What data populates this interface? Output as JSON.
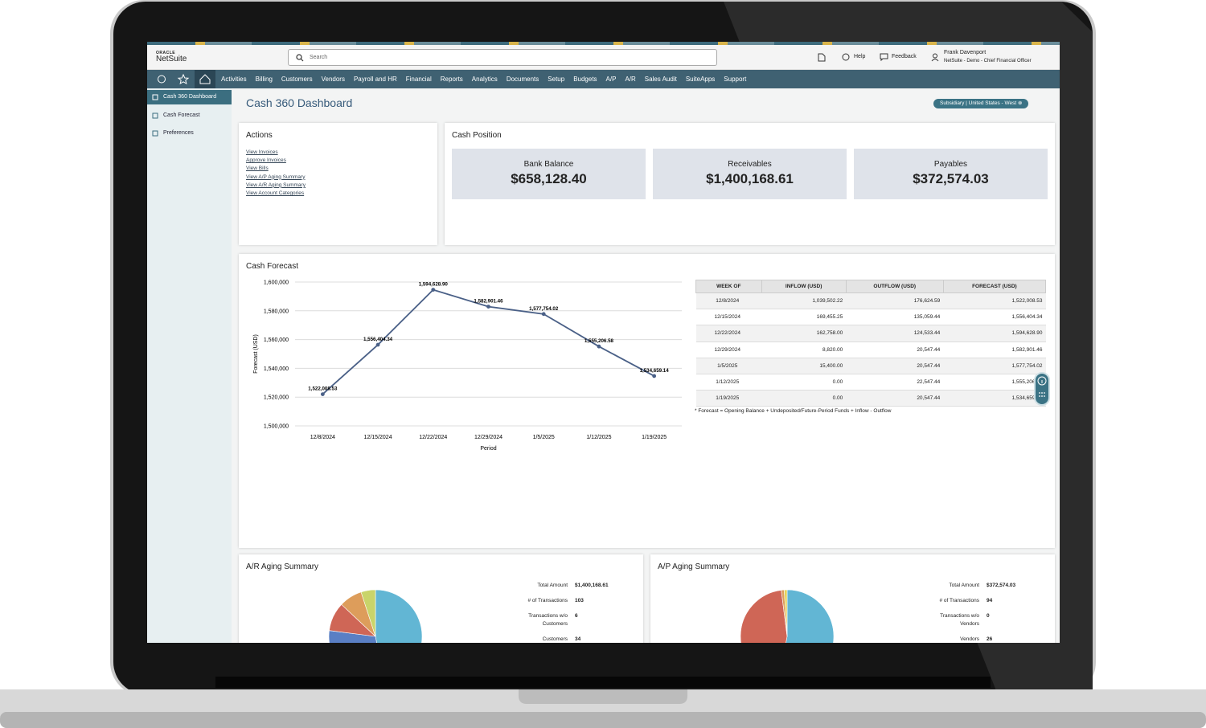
{
  "header": {
    "logo_top": "ORACLE",
    "logo_bottom": "NetSuite",
    "search": "Search",
    "help": "Help",
    "feedback": "Feedback",
    "user_name": "Frank Davenport",
    "user_role": "NetSuite - Demo - Chief Financial Officer"
  },
  "nav": [
    "Activities",
    "Billing",
    "Customers",
    "Vendors",
    "Payroll and HR",
    "Financial",
    "Reports",
    "Analytics",
    "Documents",
    "Setup",
    "Budgets",
    "A/P",
    "A/R",
    "Sales Audit",
    "SuiteApps",
    "Support"
  ],
  "sidebar": [
    "Cash 360 Dashboard",
    "Cash Forecast",
    "Preferences"
  ],
  "page_title": "Cash 360 Dashboard",
  "subsidiary": {
    "label": "Subsidiary",
    "value": "United States - West"
  },
  "actions": {
    "title": "Actions",
    "links": [
      "View Invoices",
      "Approve Invoices",
      "View Bills",
      "View A/P Aging Summary",
      "View A/R Aging Summary",
      "View Account Categories"
    ]
  },
  "cash_position": {
    "title": "Cash Position",
    "cards": [
      {
        "label": "Bank Balance",
        "value": "$658,128.40"
      },
      {
        "label": "Receivables",
        "value": "$1,400,168.61"
      },
      {
        "label": "Payables",
        "value": "$372,574.03"
      }
    ]
  },
  "chart_data": [
    {
      "type": "line",
      "title": "Cash Forecast",
      "x_label": "Period",
      "y_label": "Forecast (USD)",
      "categories": [
        "12/8/2024",
        "12/15/2024",
        "12/22/2024",
        "12/29/2024",
        "1/5/2025",
        "1/12/2025",
        "1/19/2025"
      ],
      "values": [
        1522008.53,
        1556404.34,
        1594628.9,
        1582901.46,
        1577754.02,
        1555206.58,
        1534659.14
      ],
      "value_labels": [
        "1,522,008.53",
        "1,556,404.34",
        "1,594,628.90",
        "1,582,901.46",
        "1,577,754.02",
        "1,555,206.58",
        "1,534,659.14"
      ],
      "color": "#4a6087",
      "ylim": [
        1500000,
        1600000
      ],
      "yticks": [
        {
          "value": 1500000,
          "label": "1,500,000"
        },
        {
          "value": 1520000,
          "label": "1,520,000"
        },
        {
          "value": 1540000,
          "label": "1,540,000"
        },
        {
          "value": 1560000,
          "label": "1,560,000"
        },
        {
          "value": 1580000,
          "label": "1,580,000"
        },
        {
          "value": 1600000,
          "label": "1,600,000"
        }
      ],
      "grid": true
    },
    {
      "type": "pie",
      "title": "A/R Aging Summary",
      "values": [
        47,
        30,
        10,
        8,
        5
      ],
      "colors": [
        "#62b6d4",
        "#5a7fc4",
        "#cf6656",
        "#dd9d5b",
        "#c9d46a"
      ]
    },
    {
      "type": "pie",
      "title": "A/P Aging Summary",
      "values": [
        53,
        45,
        1,
        1
      ],
      "colors": [
        "#62b6d4",
        "#cf6656",
        "#dd9d5b",
        "#e5d35a"
      ]
    }
  ],
  "forecast_table": {
    "columns": [
      "WEEK OF",
      "INFLOW (USD)",
      "OUTFLOW (USD)",
      "FORECAST (USD)"
    ],
    "rows": [
      [
        "12/8/2024",
        "1,039,502.22",
        "176,624.59",
        "1,522,008.53"
      ],
      [
        "12/15/2024",
        "169,455.25",
        "135,059.44",
        "1,556,404.34"
      ],
      [
        "12/22/2024",
        "162,758.00",
        "124,533.44",
        "1,594,628.90"
      ],
      [
        "12/29/2024",
        "8,820.00",
        "20,547.44",
        "1,582,901.46"
      ],
      [
        "1/5/2025",
        "15,400.00",
        "20,547.44",
        "1,577,754.02"
      ],
      [
        "1/12/2025",
        "0.00",
        "22,547.44",
        "1,555,206.58"
      ],
      [
        "1/19/2025",
        "0.00",
        "20,547.44",
        "1,534,659.14"
      ]
    ],
    "note": "* Forecast = Opening Balance + Undeposited/Future-Period Funds + Inflow - Outflow"
  },
  "ar_summary": [
    [
      "Total Amount",
      "$1,400,168.61"
    ],
    [
      "# of Transactions",
      "103"
    ],
    [
      "Transactions w/o Customers",
      "6"
    ],
    [
      "Customers",
      "34"
    ]
  ],
  "ap_summary": [
    [
      "Total Amount",
      "$372,574.03"
    ],
    [
      "# of Transactions",
      "94"
    ],
    [
      "Transactions w/o Vendors",
      "0"
    ],
    [
      "Vendors",
      "26"
    ]
  ]
}
